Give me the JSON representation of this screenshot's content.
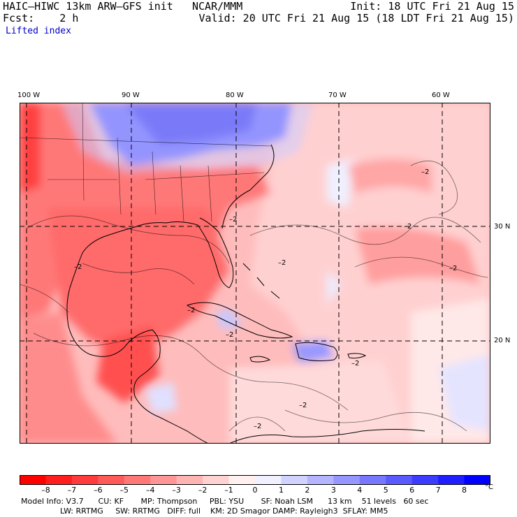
{
  "header": {
    "model": "HAIC–HIWC 13km ARW–GFS init",
    "org": "NCAR/MMM",
    "init": "Init: 18 UTC Fri 21 Aug 15",
    "fcst": "Fcst:    2 h",
    "valid": "Valid: 20 UTC Fri 21 Aug 15 (18 LDT Fri 21 Aug 15)",
    "field": "Lifted index"
  },
  "axes": {
    "lon_labels": [
      "100 W",
      "90 W",
      "80 W",
      "70 W",
      "60 W"
    ],
    "lat_labels": [
      "30 N",
      "20 N"
    ]
  },
  "contour_label": "–2",
  "colorbar": {
    "ticks": [
      "–8",
      "–7",
      "–6",
      "–5",
      "–4",
      "–3",
      "–2",
      "–1",
      "0",
      "1",
      "2",
      "3",
      "4",
      "5",
      "6",
      "7",
      "8"
    ],
    "unit": "°C",
    "colors": [
      "#ff0000",
      "#ff1e1e",
      "#ff3c3c",
      "#ff5a5a",
      "#ff7878",
      "#ff9696",
      "#ffb4b4",
      "#ffd2d2",
      "#fff0f0",
      "#f0f0ff",
      "#d2d2ff",
      "#b4b4ff",
      "#9696ff",
      "#7878ff",
      "#5a5aff",
      "#3c3cff",
      "#1e1eff",
      "#0000ff"
    ]
  },
  "info": {
    "line1": "Model Info: V3.7      CU: KF       MP: Thompson     PBL: YSU       SF: Noah LSM      13 km    51 levels   60 sec",
    "line2": "                LW: RRTMG     SW: RRTMG   DIFF: full    KM: 2D Smagor DAMP: Rayleigh3  SFLAY: MM5"
  }
}
